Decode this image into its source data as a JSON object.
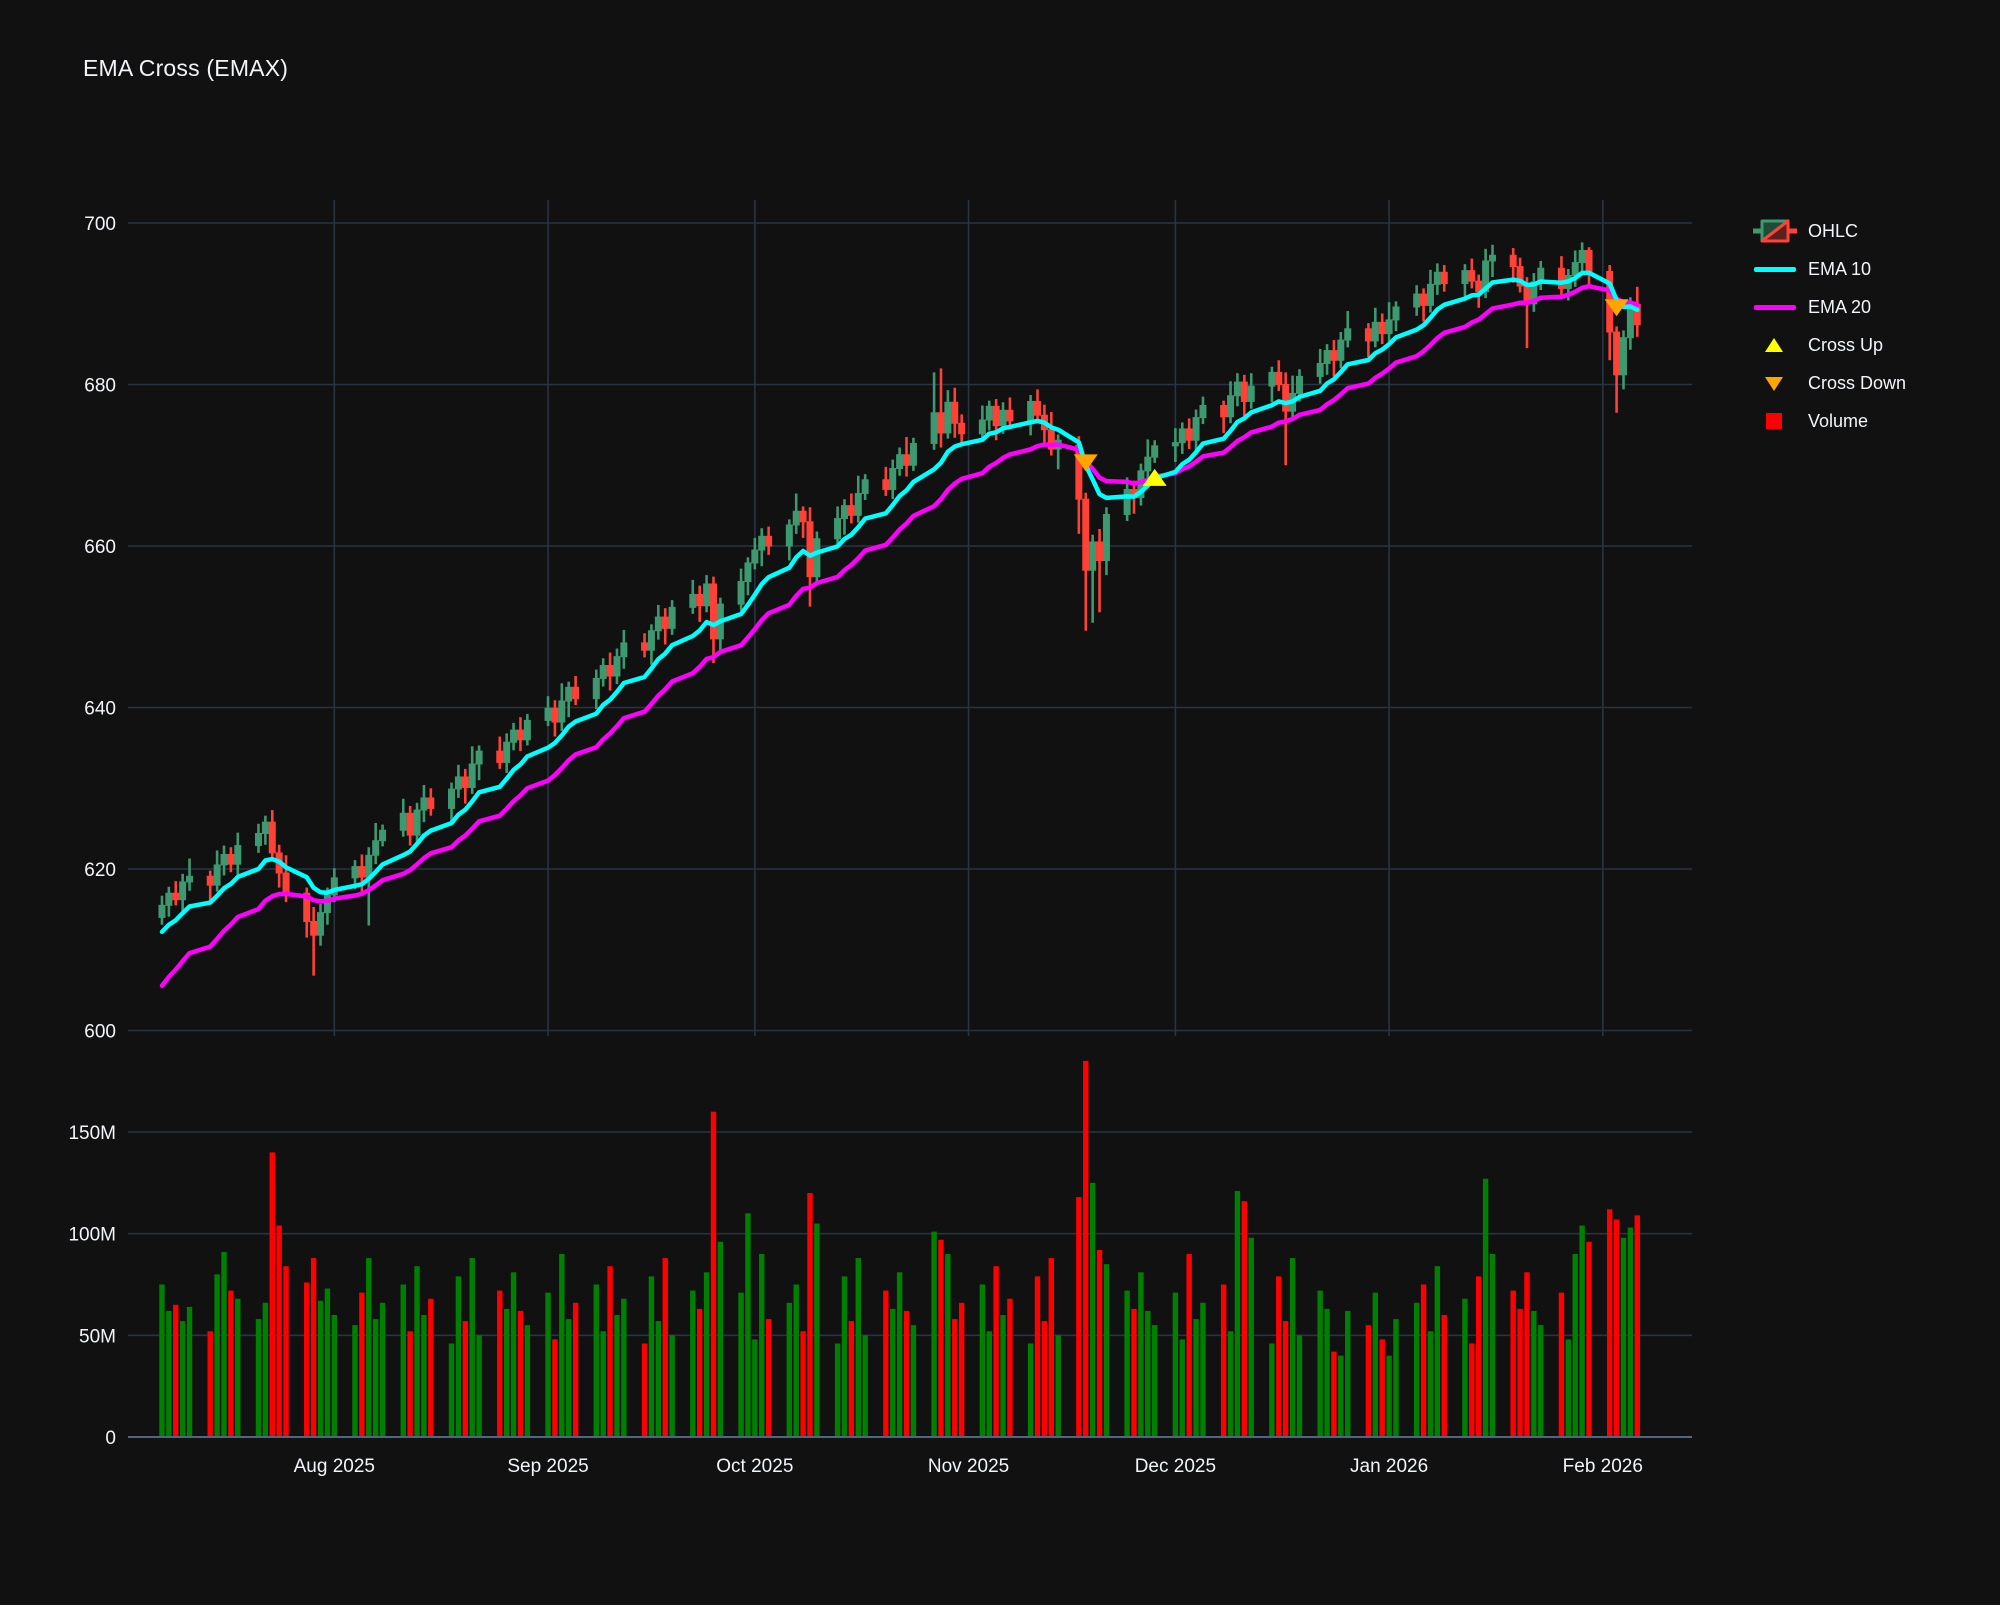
{
  "title": "EMA Cross (EMAX)",
  "chart_data": {
    "type": "candlestick",
    "title": "EMA Cross (EMAX)",
    "legend": {
      "ohlc": "OHLC",
      "ema_fast": "EMA 10",
      "ema_slow": "EMA 20",
      "cross_up": "Cross Up",
      "cross_down": "Cross Down",
      "volume": "Volume",
      "position": "top-right"
    },
    "colors": {
      "background": "#111111",
      "grid": "#283442",
      "axis_line": "#506784",
      "text": "#f2f5fa",
      "candle_up": "#3D9970",
      "candle_down": "#FF4136",
      "ema_fast": "#00ffff",
      "ema_slow": "#ff00ff",
      "cross_up": "#ffff00",
      "cross_down": "#ffa500",
      "volume_up": "#008000",
      "volume_down": "#ff0000"
    },
    "price_axis": {
      "labels": [
        "700",
        "680",
        "660",
        "640",
        "620",
        "600"
      ],
      "values": [
        700,
        680,
        660,
        640,
        620,
        600
      ],
      "range": [
        598,
        703
      ]
    },
    "volume_axis": {
      "labels": [
        "150M",
        "100M",
        "50M",
        "0"
      ],
      "values_m": [
        150,
        100,
        50,
        0
      ]
    },
    "x_ticks": [
      {
        "label": "Aug 2025",
        "date": "2025-08-01"
      },
      {
        "label": "Sep 2025",
        "date": "2025-09-01"
      },
      {
        "label": "Oct 2025",
        "date": "2025-10-01"
      },
      {
        "label": "Nov 2025",
        "date": "2025-11-01"
      },
      {
        "label": "Dec 2025",
        "date": "2025-12-01"
      },
      {
        "label": "Jan 2026",
        "date": "2026-01-01"
      },
      {
        "label": "Feb 2026",
        "date": "2026-02-01"
      }
    ],
    "ema": {
      "fast_period": 10,
      "slow_period": 20,
      "fast_seed_offset": -4,
      "slow_seed_offset": -11
    },
    "markers": [
      {
        "type": "down",
        "date": "2025-11-18",
        "value": 670.3
      },
      {
        "type": "up",
        "date": "2025-11-28",
        "value": 668.5
      },
      {
        "type": "down",
        "date": "2026-02-03",
        "value": 689.5
      }
    ],
    "dates": [
      "2025-07-07",
      "2025-07-08",
      "2025-07-09",
      "2025-07-10",
      "2025-07-11",
      "2025-07-14",
      "2025-07-15",
      "2025-07-16",
      "2025-07-17",
      "2025-07-18",
      "2025-07-21",
      "2025-07-22",
      "2025-07-23",
      "2025-07-24",
      "2025-07-25",
      "2025-07-28",
      "2025-07-29",
      "2025-07-30",
      "2025-07-31",
      "2025-08-01",
      "2025-08-04",
      "2025-08-05",
      "2025-08-06",
      "2025-08-07",
      "2025-08-08",
      "2025-08-11",
      "2025-08-12",
      "2025-08-13",
      "2025-08-14",
      "2025-08-15",
      "2025-08-18",
      "2025-08-19",
      "2025-08-20",
      "2025-08-21",
      "2025-08-22",
      "2025-08-25",
      "2025-08-26",
      "2025-08-27",
      "2025-08-28",
      "2025-08-29",
      "2025-09-01",
      "2025-09-02",
      "2025-09-03",
      "2025-09-04",
      "2025-09-05",
      "2025-09-08",
      "2025-09-09",
      "2025-09-10",
      "2025-09-11",
      "2025-09-12",
      "2025-09-15",
      "2025-09-16",
      "2025-09-17",
      "2025-09-18",
      "2025-09-19",
      "2025-09-22",
      "2025-09-23",
      "2025-09-24",
      "2025-09-25",
      "2025-09-26",
      "2025-09-29",
      "2025-09-30",
      "2025-10-01",
      "2025-10-02",
      "2025-10-03",
      "2025-10-06",
      "2025-10-07",
      "2025-10-08",
      "2025-10-09",
      "2025-10-10",
      "2025-10-13",
      "2025-10-14",
      "2025-10-15",
      "2025-10-16",
      "2025-10-17",
      "2025-10-20",
      "2025-10-21",
      "2025-10-22",
      "2025-10-23",
      "2025-10-24",
      "2025-10-27",
      "2025-10-28",
      "2025-10-29",
      "2025-10-30",
      "2025-10-31",
      "2025-11-03",
      "2025-11-04",
      "2025-11-05",
      "2025-11-06",
      "2025-11-07",
      "2025-11-10",
      "2025-11-11",
      "2025-11-12",
      "2025-11-13",
      "2025-11-14",
      "2025-11-17",
      "2025-11-18",
      "2025-11-19",
      "2025-11-20",
      "2025-11-21",
      "2025-11-24",
      "2025-11-25",
      "2025-11-26",
      "2025-11-27",
      "2025-11-28",
      "2025-12-01",
      "2025-12-02",
      "2025-12-03",
      "2025-12-04",
      "2025-12-05",
      "2025-12-08",
      "2025-12-09",
      "2025-12-10",
      "2025-12-11",
      "2025-12-12",
      "2025-12-15",
      "2025-12-16",
      "2025-12-17",
      "2025-12-18",
      "2025-12-19",
      "2025-12-22",
      "2025-12-23",
      "2025-12-24",
      "2025-12-25",
      "2025-12-26",
      "2025-12-29",
      "2025-12-30",
      "2025-12-31",
      "2026-01-01",
      "2026-01-02",
      "2026-01-05",
      "2026-01-06",
      "2026-01-07",
      "2026-01-08",
      "2026-01-09",
      "2026-01-12",
      "2026-01-13",
      "2026-01-14",
      "2026-01-15",
      "2026-01-16",
      "2026-01-19",
      "2026-01-20",
      "2026-01-21",
      "2026-01-22",
      "2026-01-23",
      "2026-01-26",
      "2026-01-27",
      "2026-01-28",
      "2026-01-29",
      "2026-01-30",
      "2026-02-02",
      "2026-02-03",
      "2026-02-04",
      "2026-02-05",
      "2026-02-06"
    ],
    "open": [
      614.0,
      615.5,
      617.0,
      616.2,
      618.4,
      619.1,
      618.0,
      620.5,
      621.8,
      620.6,
      622.9,
      624.4,
      625.8,
      622.0,
      619.5,
      617.0,
      613.5,
      611.8,
      614.6,
      616.8,
      618.9,
      620.3,
      619.0,
      621.7,
      623.5,
      624.8,
      626.9,
      624.2,
      627.3,
      628.8,
      627.5,
      629.9,
      631.4,
      630.1,
      633.0,
      634.6,
      633.2,
      635.7,
      637.2,
      636.0,
      638.4,
      639.9,
      638.2,
      640.8,
      642.5,
      641.1,
      643.6,
      645.2,
      643.9,
      646.3,
      648.0,
      647.1,
      649.5,
      651.2,
      649.8,
      652.4,
      654.0,
      652.6,
      655.3,
      648.5,
      652.8,
      655.6,
      657.9,
      659.5,
      661.2,
      660.0,
      662.6,
      664.3,
      663.0,
      656.2,
      660.9,
      663.4,
      665.0,
      663.8,
      666.5,
      668.2,
      667.0,
      669.6,
      671.3,
      670.0,
      672.7,
      676.5,
      674.0,
      677.8,
      675.2,
      673.9,
      675.6,
      677.3,
      674.9,
      676.8,
      675.5,
      677.9,
      676.2,
      674.4,
      672.0,
      672.5,
      665.8,
      657.0,
      660.5,
      658.2,
      663.9,
      667.0,
      666.0,
      669.3,
      671.0,
      672.4,
      672.8,
      674.5,
      673.1,
      675.9,
      677.4,
      676.0,
      678.6,
      680.3,
      677.9,
      679.8,
      681.5,
      680.0,
      676.7,
      678.9,
      681.0,
      682.6,
      684.2,
      683.0,
      685.5,
      686.9,
      685.4,
      687.7,
      686.3,
      688.0,
      689.6,
      691.2,
      689.8,
      692.4,
      693.9,
      692.5,
      694.1,
      692.8,
      691.5,
      695.3,
      696.0,
      694.6,
      692.2,
      690.0,
      692.7,
      694.4,
      691.9,
      693.5,
      695.1,
      696.6,
      694.0,
      686.5,
      681.2,
      685.8,
      689.9
    ],
    "high": [
      616.7,
      617.8,
      618.5,
      619.4,
      621.3,
      619.8,
      622.3,
      622.9,
      622.7,
      624.5,
      625.6,
      626.6,
      627.3,
      623.0,
      621.7,
      617.7,
      615.3,
      615.7,
      617.7,
      620.1,
      621.1,
      621.8,
      622.7,
      625.7,
      625.5,
      628.7,
      627.8,
      628.2,
      630.4,
      630.0,
      630.7,
      632.9,
      632.4,
      635.2,
      635.3,
      636.4,
      636.8,
      638.1,
      638.8,
      639.2,
      641.4,
      640.9,
      643.0,
      643.2,
      643.9,
      644.7,
      646.1,
      646.8,
      647.3,
      649.6,
      649.2,
      650.3,
      652.7,
      652.3,
      653.3,
      655.8,
      655.1,
      656.4,
      656.2,
      653.6,
      657.2,
      658.6,
      661.0,
      662.2,
      662.4,
      663.3,
      666.5,
      664.9,
      664.8,
      661.8,
      664.9,
      665.8,
      666.5,
      668.7,
      668.9,
      669.8,
      670.7,
      672.2,
      673.5,
      673.4,
      681.5,
      682.0,
      679.3,
      679.6,
      676.3,
      677.4,
      678.0,
      678.2,
      677.8,
      678.4,
      678.7,
      679.4,
      677.5,
      676.6,
      673.8,
      673.6,
      666.6,
      661.4,
      662.1,
      664.8,
      668.5,
      668.1,
      670.2,
      673.2,
      673.1,
      674.6,
      675.3,
      675.8,
      676.9,
      678.5,
      678.0,
      680.4,
      681.4,
      681.2,
      681.4,
      682.2,
      683.0,
      681.5,
      681.1,
      681.9,
      684.4,
      685.0,
      685.5,
      686.5,
      689.1,
      687.6,
      689.5,
      688.8,
      690.2,
      690.3,
      692.3,
      691.9,
      694.2,
      695.0,
      694.8,
      694.9,
      695.6,
      693.6,
      696.8,
      697.3,
      696.9,
      695.7,
      693.3,
      693.8,
      695.3,
      695.9,
      694.3,
      696.6,
      697.6,
      697.0,
      694.8,
      687.2,
      686.7,
      690.8,
      692.1
    ],
    "low": [
      613.1,
      614.1,
      615.5,
      614.4,
      617.3,
      616.0,
      617.2,
      619.2,
      619.6,
      619.1,
      622.0,
      623.0,
      621.3,
      617.7,
      615.9,
      611.5,
      606.8,
      610.5,
      613.1,
      615.9,
      617.5,
      617.0,
      613.0,
      620.6,
      622.8,
      624.0,
      622.9,
      623.2,
      625.8,
      626.6,
      625.7,
      628.8,
      628.1,
      629.3,
      631.0,
      632.4,
      631.9,
      634.7,
      634.6,
      635.3,
      637.7,
      636.4,
      637.1,
      638.8,
      640.3,
      639.8,
      642.6,
      642.1,
      642.9,
      644.8,
      646.2,
      645.3,
      648.4,
      647.8,
      649.0,
      651.6,
      650.6,
      651.8,
      645.5,
      646.9,
      652.0,
      653.9,
      657.1,
      657.5,
      658.9,
      658.2,
      661.5,
      661.0,
      652.5,
      655.2,
      660.0,
      661.4,
      662.8,
      662.9,
      665.7,
      666.2,
      665.8,
      668.7,
      668.6,
      669.3,
      671.9,
      672.2,
      673.3,
      673.4,
      672.8,
      673.1,
      674.3,
      673.1,
      673.9,
      674.6,
      673.7,
      675.3,
      672.4,
      671.2,
      669.5,
      661.5,
      649.5,
      650.5,
      651.8,
      656.4,
      663.1,
      664.0,
      665.0,
      668.4,
      670.3,
      670.4,
      671.4,
      672.0,
      671.3,
      675.1,
      674.0,
      675.2,
      677.3,
      676.1,
      677.0,
      677.8,
      679.2,
      670.0,
      675.9,
      677.9,
      680.1,
      681.2,
      681.0,
      682.0,
      684.6,
      683.4,
      684.6,
      685.0,
      685.2,
      686.6,
      688.5,
      687.8,
      688.9,
      691.1,
      691.5,
      690.5,
      691.9,
      689.5,
      690.7,
      693.3,
      692.6,
      691.4,
      684.5,
      689.0,
      691.7,
      690.9,
      690.4,
      692.1,
      694.0,
      692.2,
      683.0,
      676.5,
      679.4,
      684.3,
      685.9
    ],
    "close": [
      615.5,
      617.0,
      616.2,
      618.4,
      619.1,
      618.0,
      620.5,
      621.8,
      620.6,
      622.9,
      624.4,
      625.8,
      622.0,
      619.5,
      617.0,
      613.5,
      611.8,
      614.6,
      616.8,
      618.9,
      620.3,
      619.0,
      621.7,
      623.5,
      624.8,
      626.9,
      624.2,
      627.3,
      628.8,
      627.5,
      629.9,
      631.4,
      630.1,
      633.0,
      634.6,
      633.2,
      635.7,
      637.2,
      636.0,
      638.4,
      639.9,
      638.2,
      640.8,
      642.5,
      641.1,
      643.6,
      645.2,
      643.9,
      646.3,
      648.0,
      647.1,
      649.5,
      651.2,
      649.8,
      652.4,
      654.0,
      652.6,
      655.3,
      648.5,
      652.8,
      655.6,
      657.9,
      659.5,
      661.2,
      660.0,
      662.6,
      664.3,
      663.0,
      656.2,
      660.9,
      663.4,
      665.0,
      663.8,
      666.5,
      668.2,
      667.0,
      669.6,
      671.3,
      670.0,
      672.7,
      676.5,
      674.0,
      677.8,
      675.2,
      673.9,
      675.6,
      677.3,
      674.9,
      676.8,
      675.5,
      677.9,
      676.2,
      674.4,
      672.0,
      673.1,
      665.8,
      657.0,
      660.5,
      658.2,
      663.9,
      667.0,
      666.0,
      669.3,
      671.0,
      672.4,
      672.8,
      674.5,
      673.1,
      675.9,
      677.4,
      676.0,
      678.6,
      680.3,
      677.9,
      679.8,
      681.5,
      680.0,
      676.7,
      678.9,
      681.0,
      682.6,
      684.2,
      683.0,
      685.5,
      686.9,
      685.4,
      687.7,
      686.3,
      688.0,
      689.6,
      691.2,
      689.8,
      692.4,
      693.9,
      692.5,
      694.1,
      692.8,
      691.5,
      695.3,
      696.0,
      694.6,
      692.2,
      690.0,
      692.7,
      694.4,
      691.9,
      693.5,
      695.1,
      696.6,
      694.0,
      686.5,
      681.2,
      685.8,
      689.9,
      687.4
    ],
    "volume_m": [
      75,
      62,
      65,
      57,
      64,
      52,
      80,
      91,
      72,
      68,
      58,
      66,
      140,
      104,
      84,
      76,
      88,
      67,
      73,
      60,
      55,
      71,
      88,
      58,
      66,
      75,
      52,
      84,
      60,
      68,
      46,
      79,
      57,
      88,
      50,
      72,
      63,
      81,
      62,
      55,
      71,
      48,
      90,
      58,
      66,
      75,
      52,
      84,
      60,
      68,
      46,
      79,
      57,
      88,
      50,
      72,
      63,
      81,
      160,
      96,
      71,
      110,
      48,
      90,
      58,
      66,
      75,
      52,
      120,
      105,
      46,
      79,
      57,
      88,
      50,
      72,
      63,
      81,
      62,
      55,
      101,
      97,
      90,
      58,
      66,
      75,
      52,
      84,
      60,
      68,
      46,
      79,
      57,
      88,
      50,
      118,
      185,
      125,
      92,
      85,
      72,
      63,
      81,
      62,
      55,
      71,
      48,
      90,
      58,
      66,
      75,
      52,
      121,
      116,
      98,
      46,
      79,
      57,
      88,
      50,
      72,
      63,
      42,
      40,
      62,
      55,
      71,
      48,
      40,
      58,
      66,
      75,
      52,
      84,
      60,
      68,
      46,
      79,
      127,
      90,
      72,
      63,
      81,
      62,
      55,
      71,
      48,
      90,
      104,
      96,
      112,
      107,
      98,
      103,
      109
    ]
  }
}
